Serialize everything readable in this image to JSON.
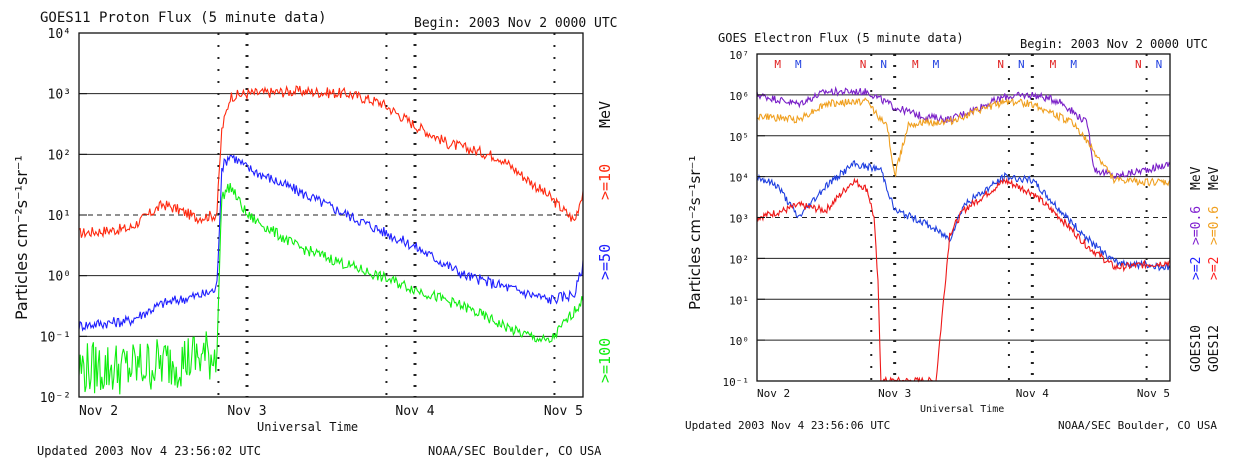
{
  "chart_data": [
    {
      "type": "line",
      "title": "GOES11 Proton Flux (5 minute data)",
      "begin_label": "Begin: 2003 Nov 2 0000 UTC",
      "xlabel": "Universal Time",
      "ylabel": "Particles cm⁻²s⁻¹sr⁻¹",
      "y_scale": "log",
      "ylim": [
        0.01,
        10000
      ],
      "yticks": [
        "10⁻²",
        "10⁻¹",
        "10⁰",
        "10¹",
        "10²",
        "10³",
        "10⁴"
      ],
      "xlim_days": [
        0,
        3
      ],
      "xticks": [
        "Nov 2",
        "Nov 3",
        "Nov 4",
        "Nov 5"
      ],
      "unit_label": "MeV",
      "dashed_threshold": 10,
      "footer_left": "Updated 2003 Nov  4 23:56:02 UTC",
      "footer_right": "NOAA/SEC Boulder, CO USA",
      "series": [
        {
          "name": ">=10",
          "color": "#ff2a10",
          "x_days": [
            0,
            0.3,
            0.5,
            0.6,
            0.7,
            0.82,
            0.85,
            0.9,
            1.0,
            1.3,
            1.6,
            1.8,
            2.0,
            2.2,
            2.5,
            2.8,
            2.95,
            3.0
          ],
          "values": [
            5,
            6,
            15,
            12,
            9,
            10,
            250,
            900,
            1000,
            1100,
            1000,
            700,
            300,
            150,
            90,
            20,
            8,
            25
          ]
        },
        {
          "name": ">=50",
          "color": "#2020ff",
          "x_days": [
            0,
            0.3,
            0.5,
            0.75,
            0.82,
            0.85,
            0.9,
            1.0,
            1.3,
            1.6,
            2.0,
            2.3,
            2.5,
            2.8,
            2.95,
            3.0
          ],
          "values": [
            0.15,
            0.18,
            0.35,
            0.5,
            0.6,
            60,
            100,
            60,
            25,
            10,
            3,
            1,
            0.7,
            0.4,
            0.5,
            1.5
          ]
        },
        {
          "name": ">=100",
          "color": "#10ee10",
          "x_days": [
            0,
            0.3,
            0.6,
            0.8,
            0.82,
            0.85,
            0.9,
            1.0,
            1.3,
            1.6,
            2.0,
            2.3,
            2.6,
            2.8,
            3.0
          ],
          "values": [
            0.03,
            0.03,
            0.04,
            0.05,
            0.05,
            20,
            30,
            10,
            3,
            1.5,
            0.6,
            0.3,
            0.12,
            0.08,
            0.4
          ]
        }
      ]
    },
    {
      "type": "line",
      "title": "GOES Electron Flux (5 minute data)",
      "begin_label": "Begin: 2003 Nov 2 0000 UTC",
      "xlabel": "Universal Time",
      "ylabel": "Particles cm⁻²s⁻¹sr⁻¹",
      "y_scale": "log",
      "ylim": [
        0.1,
        10000000
      ],
      "yticks": [
        "10⁻¹",
        "10⁰",
        "10¹",
        "10²",
        "10³",
        "10⁴",
        "10⁵",
        "10⁶",
        "10⁷"
      ],
      "xlim_days": [
        0,
        3
      ],
      "xticks": [
        "Nov 2",
        "Nov 3",
        "Nov 4",
        "Nov 5"
      ],
      "dashed_threshold": 1000,
      "noon_midnight_markers": [
        {
          "label": "M",
          "color": "#e02020",
          "x_days": 0.15
        },
        {
          "label": "M",
          "color": "#2040e0",
          "x_days": 0.3
        },
        {
          "label": "N",
          "color": "#e02020",
          "x_days": 0.77
        },
        {
          "label": "N",
          "color": "#2040e0",
          "x_days": 0.92
        },
        {
          "label": "M",
          "color": "#e02020",
          "x_days": 1.15
        },
        {
          "label": "M",
          "color": "#2040e0",
          "x_days": 1.3
        },
        {
          "label": "N",
          "color": "#e02020",
          "x_days": 1.77
        },
        {
          "label": "N",
          "color": "#2040e0",
          "x_days": 1.92
        },
        {
          "label": "M",
          "color": "#e02020",
          "x_days": 2.15
        },
        {
          "label": "M",
          "color": "#2040e0",
          "x_days": 2.3
        },
        {
          "label": "N",
          "color": "#e02020",
          "x_days": 2.77
        },
        {
          "label": "N",
          "color": "#2040e0",
          "x_days": 2.92
        }
      ],
      "right_labels": [
        {
          "text": ">=2",
          "color": "#2020ff"
        },
        {
          "text": ">=0.6",
          "color": "#8020d0"
        },
        {
          "text": "MeV",
          "color": "#111111"
        },
        {
          "text": ">=2",
          "color": "#ff2020"
        },
        {
          "text": ">=0.6",
          "color": "#f0a020"
        },
        {
          "text": "MeV",
          "color": "#111111"
        },
        {
          "text": "GOES10",
          "color": "#111111"
        },
        {
          "text": "GOES12",
          "color": "#111111"
        }
      ],
      "footer_left": "Updated 2003 Nov  4 23:56:06 UTC",
      "footer_right": "NOAA/SEC Boulder, CO USA",
      "series": [
        {
          "name": "GOES10 >=0.6 MeV",
          "color": "#7a20c8",
          "x_days": [
            0,
            0.3,
            0.5,
            0.8,
            1.0,
            1.2,
            1.4,
            1.8,
            2.0,
            2.2,
            2.4,
            2.45,
            2.6,
            3.0
          ],
          "values": [
            1000000,
            600000,
            1200000,
            1200000,
            500000,
            300000,
            250000,
            900000,
            1000000,
            700000,
            200000,
            15000,
            10000,
            20000
          ]
        },
        {
          "name": "GOES12 >=0.6 MeV",
          "color": "#f0a020",
          "x_days": [
            0,
            0.3,
            0.5,
            0.8,
            0.95,
            1.0,
            1.1,
            1.4,
            1.8,
            2.0,
            2.3,
            2.45,
            2.6,
            3.0
          ],
          "values": [
            300000,
            250000,
            600000,
            700000,
            150000,
            10000,
            200000,
            220000,
            700000,
            600000,
            200000,
            40000,
            8000,
            7000
          ]
        },
        {
          "name": "GOES10 >=2 MeV",
          "color": "#2040e0",
          "x_days": [
            0,
            0.15,
            0.3,
            0.5,
            0.7,
            0.9,
            1.0,
            1.2,
            1.4,
            1.5,
            1.8,
            2.0,
            2.2,
            2.4,
            2.6,
            3.0
          ],
          "values": [
            10000,
            6000,
            1000,
            6000,
            20000,
            15000,
            1500,
            800,
            300,
            2000,
            10000,
            8000,
            1500,
            300,
            80,
            60
          ]
        },
        {
          "name": "GOES12 >=2 MeV",
          "color": "#ee1818",
          "x_days": [
            0,
            0.2,
            0.3,
            0.5,
            0.7,
            0.8,
            0.85,
            0.88,
            0.9,
            1.0,
            1.3,
            1.4,
            1.5,
            1.8,
            2.0,
            2.2,
            2.4,
            2.6,
            3.0
          ],
          "values": [
            1000,
            1500,
            2000,
            1500,
            8000,
            5000,
            1000,
            20,
            0.1,
            0.1,
            0.1,
            400,
            1500,
            8000,
            4000,
            1000,
            200,
            60,
            80
          ]
        }
      ]
    }
  ]
}
